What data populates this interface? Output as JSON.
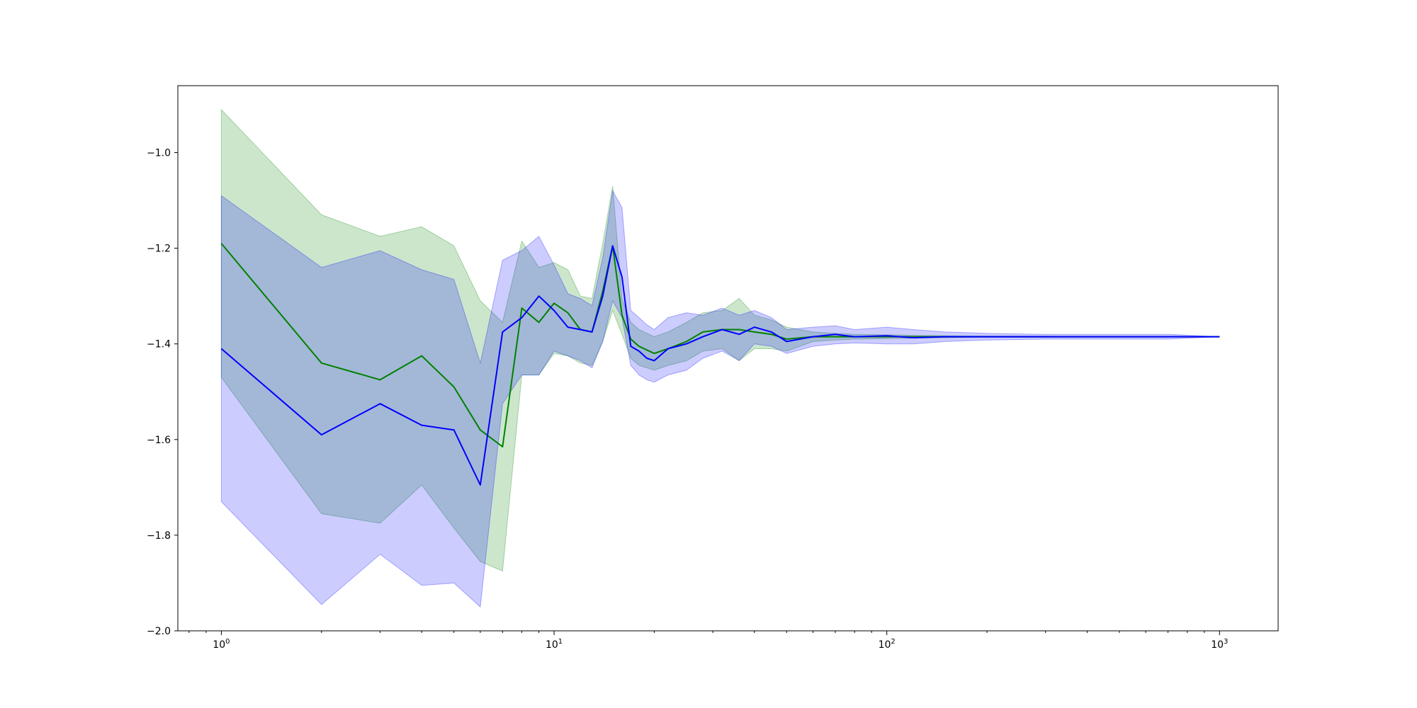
{
  "chart_data": {
    "type": "line",
    "title": "",
    "xlabel": "",
    "ylabel": "",
    "xscale": "log",
    "xlim": [
      0.74,
      1500
    ],
    "ylim": [
      -2.0,
      -0.86
    ],
    "grid": false,
    "legend": "none",
    "x_ticks": [
      {
        "value": 1,
        "base": "10",
        "exp": "0"
      },
      {
        "value": 10,
        "base": "10",
        "exp": "1"
      },
      {
        "value": 100,
        "base": "10",
        "exp": "2"
      },
      {
        "value": 1000,
        "base": "10",
        "exp": "3"
      }
    ],
    "y_ticks": [
      {
        "value": -1.0,
        "label": "−1.0"
      },
      {
        "value": -1.2,
        "label": "−1.2"
      },
      {
        "value": -1.4,
        "label": "−1.4"
      },
      {
        "value": -1.6,
        "label": "−1.6"
      },
      {
        "value": -1.8,
        "label": "−1.8"
      },
      {
        "value": -2.0,
        "label": "−2.0"
      }
    ],
    "series": [
      {
        "color": "#008000",
        "band_color": "#008000",
        "band_opacity": 0.2,
        "x": [
          1,
          2,
          3,
          4,
          5,
          6,
          7,
          8,
          9,
          10,
          11,
          12,
          13,
          14,
          15,
          16,
          17,
          18,
          20,
          22,
          25,
          28,
          32,
          36,
          40,
          45,
          50,
          60,
          70,
          80,
          100,
          120,
          150,
          200,
          300,
          500,
          700,
          1000
        ],
        "y": [
          -1.19,
          -1.44,
          -1.475,
          -1.425,
          -1.49,
          -1.58,
          -1.615,
          -1.325,
          -1.355,
          -1.315,
          -1.335,
          -1.37,
          -1.375,
          -1.29,
          -1.195,
          -1.34,
          -1.39,
          -1.405,
          -1.42,
          -1.41,
          -1.395,
          -1.375,
          -1.37,
          -1.37,
          -1.375,
          -1.38,
          -1.39,
          -1.385,
          -1.385,
          -1.385,
          -1.385,
          -1.385,
          -1.385,
          -1.385,
          -1.385,
          -1.385,
          -1.385,
          -1.385
        ],
        "upper": [
          -0.91,
          -1.13,
          -1.175,
          -1.155,
          -1.195,
          -1.31,
          -1.355,
          -1.185,
          -1.24,
          -1.23,
          -1.245,
          -1.3,
          -1.305,
          -1.19,
          -1.07,
          -1.305,
          -1.355,
          -1.37,
          -1.385,
          -1.375,
          -1.355,
          -1.335,
          -1.33,
          -1.305,
          -1.34,
          -1.35,
          -1.365,
          -1.375,
          -1.378,
          -1.38,
          -1.381,
          -1.382,
          -1.383,
          -1.384,
          -1.384,
          -1.385,
          -1.385,
          -1.385
        ],
        "lower": [
          -1.47,
          -1.755,
          -1.775,
          -1.695,
          -1.785,
          -1.855,
          -1.875,
          -1.465,
          -1.465,
          -1.42,
          -1.425,
          -1.44,
          -1.445,
          -1.395,
          -1.33,
          -1.38,
          -1.43,
          -1.445,
          -1.455,
          -1.445,
          -1.435,
          -1.415,
          -1.41,
          -1.435,
          -1.41,
          -1.41,
          -1.415,
          -1.395,
          -1.392,
          -1.39,
          -1.389,
          -1.388,
          -1.387,
          -1.386,
          -1.386,
          -1.385,
          -1.385,
          -1.385
        ]
      },
      {
        "color": "#0000ff",
        "band_color": "#0000ff",
        "band_opacity": 0.2,
        "x": [
          1,
          2,
          3,
          4,
          5,
          6,
          7,
          8,
          9,
          10,
          11,
          12,
          13,
          14,
          15,
          16,
          17,
          18,
          19,
          20,
          22,
          25,
          28,
          32,
          36,
          40,
          45,
          50,
          60,
          70,
          80,
          100,
          120,
          150,
          200,
          300,
          500,
          700,
          1000
        ],
        "y": [
          -1.41,
          -1.59,
          -1.525,
          -1.57,
          -1.58,
          -1.695,
          -1.375,
          -1.345,
          -1.3,
          -1.33,
          -1.365,
          -1.37,
          -1.375,
          -1.3,
          -1.195,
          -1.26,
          -1.405,
          -1.415,
          -1.43,
          -1.435,
          -1.41,
          -1.4,
          -1.385,
          -1.37,
          -1.38,
          -1.365,
          -1.375,
          -1.395,
          -1.385,
          -1.38,
          -1.385,
          -1.383,
          -1.387,
          -1.385,
          -1.385,
          -1.385,
          -1.385,
          -1.385,
          -1.385
        ],
        "upper": [
          -1.09,
          -1.24,
          -1.205,
          -1.245,
          -1.265,
          -1.44,
          -1.225,
          -1.205,
          -1.175,
          -1.235,
          -1.295,
          -1.305,
          -1.32,
          -1.22,
          -1.08,
          -1.115,
          -1.33,
          -1.345,
          -1.36,
          -1.37,
          -1.345,
          -1.335,
          -1.34,
          -1.325,
          -1.34,
          -1.33,
          -1.345,
          -1.37,
          -1.365,
          -1.362,
          -1.37,
          -1.365,
          -1.37,
          -1.375,
          -1.378,
          -1.38,
          -1.38,
          -1.38,
          -1.385
        ],
        "lower": [
          -1.73,
          -1.945,
          -1.84,
          -1.905,
          -1.9,
          -1.95,
          -1.525,
          -1.465,
          -1.465,
          -1.415,
          -1.425,
          -1.435,
          -1.45,
          -1.395,
          -1.31,
          -1.345,
          -1.445,
          -1.465,
          -1.475,
          -1.48,
          -1.465,
          -1.455,
          -1.43,
          -1.415,
          -1.435,
          -1.4,
          -1.405,
          -1.42,
          -1.405,
          -1.4,
          -1.398,
          -1.4,
          -1.4,
          -1.395,
          -1.392,
          -1.39,
          -1.39,
          -1.39,
          -1.385
        ]
      }
    ]
  }
}
